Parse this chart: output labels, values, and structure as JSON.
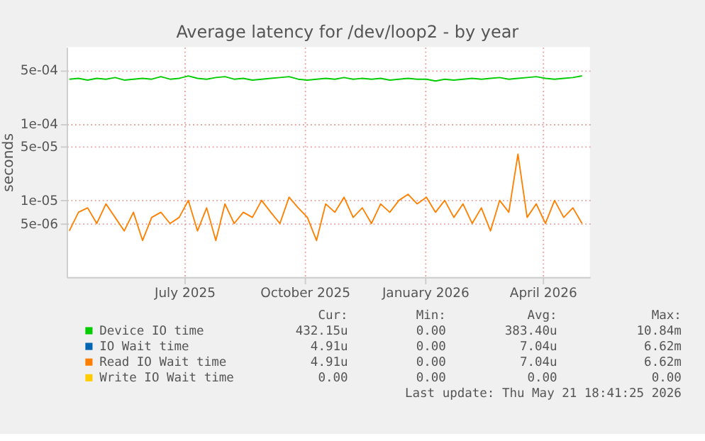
{
  "chart_data": {
    "type": "line",
    "title": "Average latency for /dev/loop2 - by year",
    "ylabel": "seconds",
    "log": "y",
    "grid": true,
    "legend": "bottom",
    "xlim": [
      "2025-04-16",
      "2026-05-21"
    ],
    "xticks": [
      {
        "value": "2025-07-15",
        "label": "July 2025"
      },
      {
        "value": "2025-10-15",
        "label": "October 2025"
      },
      {
        "value": "2026-01-15",
        "label": "January 2026"
      },
      {
        "value": "2026-04-15",
        "label": "April 2026"
      }
    ],
    "ylim": [
      1e-06,
      0.001
    ],
    "yticks": [
      {
        "value": 5e-06,
        "label": "5e-06"
      },
      {
        "value": 1e-05,
        "label": "1e-05"
      },
      {
        "value": 5e-05,
        "label": "5e-05"
      },
      {
        "value": 0.0001,
        "label": "1e-04"
      },
      {
        "value": 0.0005,
        "label": "5e-04"
      }
    ],
    "x": [
      "2025-04-18",
      "2025-04-25",
      "2025-05-02",
      "2025-05-09",
      "2025-05-16",
      "2025-05-23",
      "2025-05-30",
      "2025-06-06",
      "2025-06-13",
      "2025-06-20",
      "2025-06-27",
      "2025-07-04",
      "2025-07-11",
      "2025-07-18",
      "2025-07-25",
      "2025-08-01",
      "2025-08-08",
      "2025-08-15",
      "2025-08-22",
      "2025-08-29",
      "2025-09-05",
      "2025-09-12",
      "2025-09-19",
      "2025-09-26",
      "2025-10-03",
      "2025-10-10",
      "2025-10-17",
      "2025-10-24",
      "2025-10-31",
      "2025-11-07",
      "2025-11-14",
      "2025-11-21",
      "2025-11-28",
      "2025-12-05",
      "2025-12-12",
      "2025-12-19",
      "2025-12-26",
      "2026-01-02",
      "2026-01-09",
      "2026-01-16",
      "2026-01-23",
      "2026-01-30",
      "2026-02-06",
      "2026-02-13",
      "2026-02-20",
      "2026-02-27",
      "2026-03-06",
      "2026-03-13",
      "2026-03-20",
      "2026-03-27",
      "2026-04-03",
      "2026-04-10",
      "2026-04-17",
      "2026-04-24",
      "2026-05-01",
      "2026-05-08",
      "2026-05-15"
    ],
    "series": [
      {
        "name": "Device IO time",
        "color": "#00cc00",
        "values": [
          0.00038,
          0.00039,
          0.00037,
          0.00039,
          0.00038,
          0.0004,
          0.00037,
          0.00038,
          0.00039,
          0.00038,
          0.00041,
          0.00038,
          0.00039,
          0.00042,
          0.00039,
          0.00038,
          0.0004,
          0.00041,
          0.00038,
          0.00039,
          0.00037,
          0.00038,
          0.00039,
          0.0004,
          0.00041,
          0.00038,
          0.00037,
          0.00038,
          0.00039,
          0.00038,
          0.0004,
          0.00038,
          0.00039,
          0.00038,
          0.00039,
          0.00037,
          0.00038,
          0.00039,
          0.00038,
          0.00038,
          0.00036,
          0.00038,
          0.00037,
          0.00038,
          0.00039,
          0.00038,
          0.00039,
          0.0004,
          0.00038,
          0.00039,
          0.0004,
          0.00041,
          0.00039,
          0.00038,
          0.00039,
          0.0004,
          0.00042
        ]
      },
      {
        "name": "IO Wait time",
        "color": "#0066b3",
        "values": [
          null,
          null,
          null,
          null,
          null,
          null,
          null,
          null,
          null,
          null,
          null,
          null,
          null,
          null,
          null,
          null,
          null,
          null,
          null,
          null,
          null,
          null,
          null,
          null,
          null,
          null,
          null,
          null,
          null,
          null,
          null,
          null,
          null,
          null,
          null,
          null,
          null,
          null,
          null,
          null,
          null,
          null,
          null,
          null,
          null,
          null,
          null,
          null,
          null,
          null,
          null,
          null,
          null,
          null,
          null,
          null,
          null
        ]
      },
      {
        "name": "Read IO Wait time",
        "color": "#ff8000",
        "values": [
          4e-06,
          7e-06,
          8e-06,
          5e-06,
          9e-06,
          6e-06,
          4e-06,
          7e-06,
          3e-06,
          6e-06,
          7e-06,
          5e-06,
          6e-06,
          1e-05,
          4e-06,
          8e-06,
          3e-06,
          9e-06,
          5e-06,
          7e-06,
          6e-06,
          1e-05,
          7e-06,
          5e-06,
          1.1e-05,
          8e-06,
          6e-06,
          3e-06,
          9e-06,
          7e-06,
          1.1e-05,
          6e-06,
          8e-06,
          5e-06,
          9e-06,
          7e-06,
          1e-05,
          1.2e-05,
          9e-06,
          1.1e-05,
          7e-06,
          1e-05,
          6e-06,
          9e-06,
          5e-06,
          8e-06,
          4e-06,
          1e-05,
          7e-06,
          4e-05,
          6e-06,
          9e-06,
          5e-06,
          1e-05,
          6e-06,
          8e-06,
          5e-06
        ]
      },
      {
        "name": "Write IO Wait time",
        "color": "#ffcc00",
        "values": [
          null,
          null,
          null,
          null,
          null,
          null,
          null,
          null,
          null,
          null,
          null,
          null,
          null,
          null,
          null,
          null,
          null,
          null,
          null,
          null,
          null,
          null,
          null,
          null,
          null,
          null,
          null,
          null,
          null,
          null,
          null,
          null,
          null,
          null,
          null,
          null,
          null,
          null,
          null,
          null,
          null,
          null,
          null,
          null,
          null,
          null,
          null,
          null,
          null,
          null,
          null,
          null,
          null,
          null,
          null,
          null,
          null
        ]
      }
    ],
    "annotations": [
      "Cur:",
      "Min:",
      "Avg:",
      "Max:",
      "432.15u",
      "0.00",
      "383.40u",
      "10.84m",
      "4.91u",
      "0.00",
      "7.04u",
      "6.62m",
      "4.91u",
      "0.00",
      "7.04u",
      "6.62m",
      "0.00",
      "0.00",
      "0.00",
      "0.00",
      "Last update: Thu May 21 18:41:25 2026"
    ]
  }
}
